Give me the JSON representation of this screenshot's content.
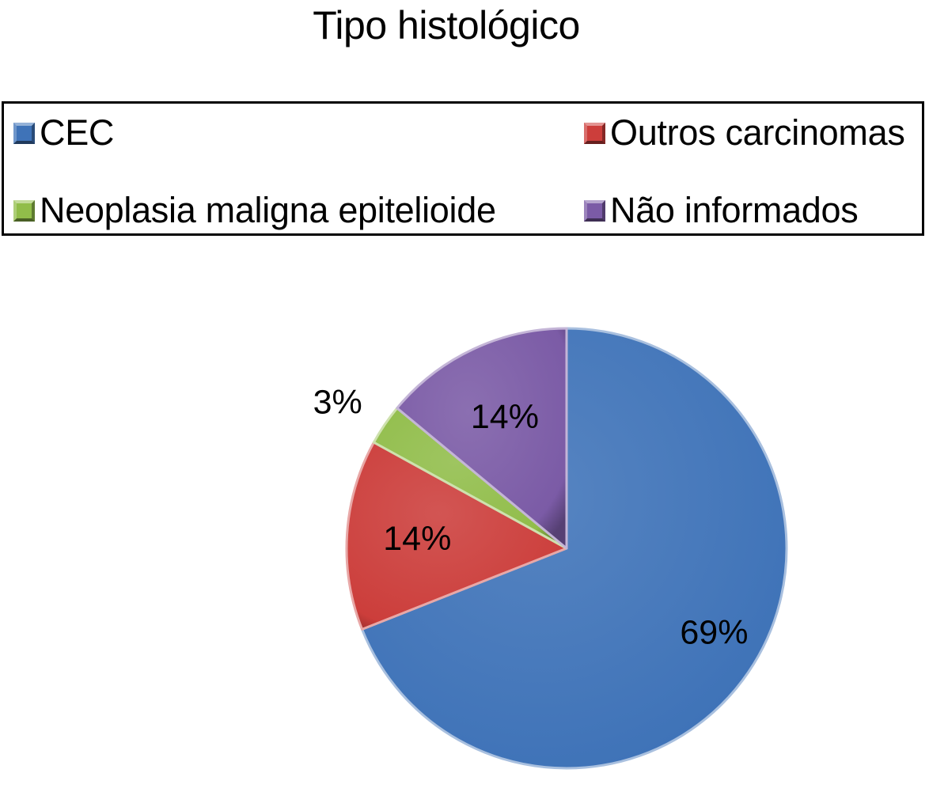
{
  "chart_data": {
    "type": "pie",
    "title": "Tipo histológico",
    "legend_position": "top",
    "categories": [
      "CEC",
      "Outros carcinomas",
      "Neoplasia maligna epitelioide",
      "Não informados"
    ],
    "values": [
      69,
      14,
      3,
      14
    ],
    "labels": [
      "69%",
      "14%",
      "3%",
      "14%"
    ],
    "colors": [
      "#3f73b8",
      "#cc3e3b",
      "#91bd4a",
      "#7b5ba6"
    ],
    "legend": [
      {
        "label": "CEC",
        "color": "#3f73b8"
      },
      {
        "label": "Outros carcinomas",
        "color": "#cc3e3b"
      },
      {
        "label": "Neoplasia maligna epitelioide",
        "color": "#91bd4a"
      },
      {
        "label": "Não informados",
        "color": "#7b5ba6"
      }
    ]
  }
}
